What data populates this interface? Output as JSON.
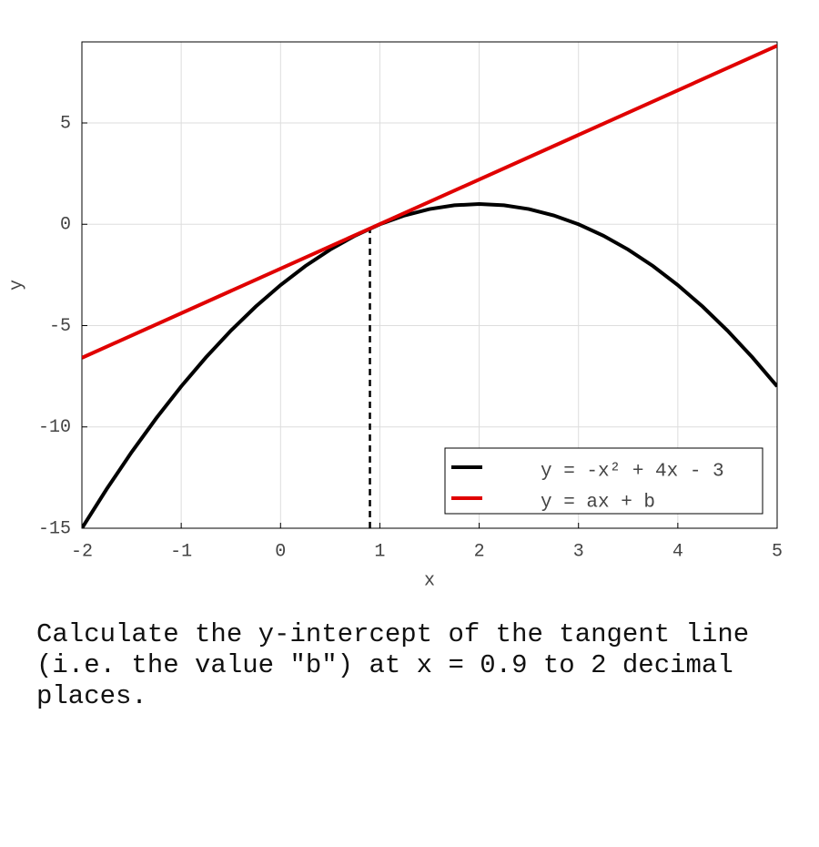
{
  "chart_data": {
    "type": "line",
    "xlabel": "x",
    "ylabel": "y",
    "xlim": [
      -2,
      5
    ],
    "ylim": [
      -15,
      9
    ],
    "xticks": [
      -2,
      -1,
      0,
      1,
      2,
      3,
      4,
      5
    ],
    "yticks": [
      -15,
      -10,
      -5,
      0,
      5
    ],
    "grid": true,
    "legend": "lower right",
    "series": [
      {
        "name": "y = -x² + 4x - 3",
        "color": "#000000",
        "x": [
          -2,
          -1.75,
          -1.5,
          -1.25,
          -1,
          -0.75,
          -0.5,
          -0.25,
          0,
          0.25,
          0.5,
          0.75,
          1,
          1.25,
          1.5,
          1.75,
          2,
          2.25,
          2.5,
          2.75,
          3,
          3.25,
          3.5,
          3.75,
          4,
          4.25,
          4.5,
          4.75,
          5
        ],
        "values": [
          -15,
          -13.0625,
          -11.25,
          -9.5625,
          -8,
          -6.5625,
          -5.25,
          -4.0625,
          -3,
          -2.0625,
          -1.25,
          -0.5625,
          0,
          0.4375,
          0.75,
          0.9375,
          1,
          0.9375,
          0.75,
          0.4375,
          0,
          -0.5625,
          -1.25,
          -2.0625,
          -3,
          -4.0625,
          -5.25,
          -6.5625,
          -8
        ]
      },
      {
        "name": "y = ax + b",
        "color": "#e00000",
        "x": [
          -2,
          5
        ],
        "values": [
          -6.59,
          8.81
        ]
      }
    ],
    "vline": {
      "x": 0.9,
      "y_top": -0.21,
      "color": "#000000"
    }
  },
  "question": "Calculate the y-intercept of the tangent line (i.e. the value \"b\") at x = 0.9 to 2 decimal places."
}
